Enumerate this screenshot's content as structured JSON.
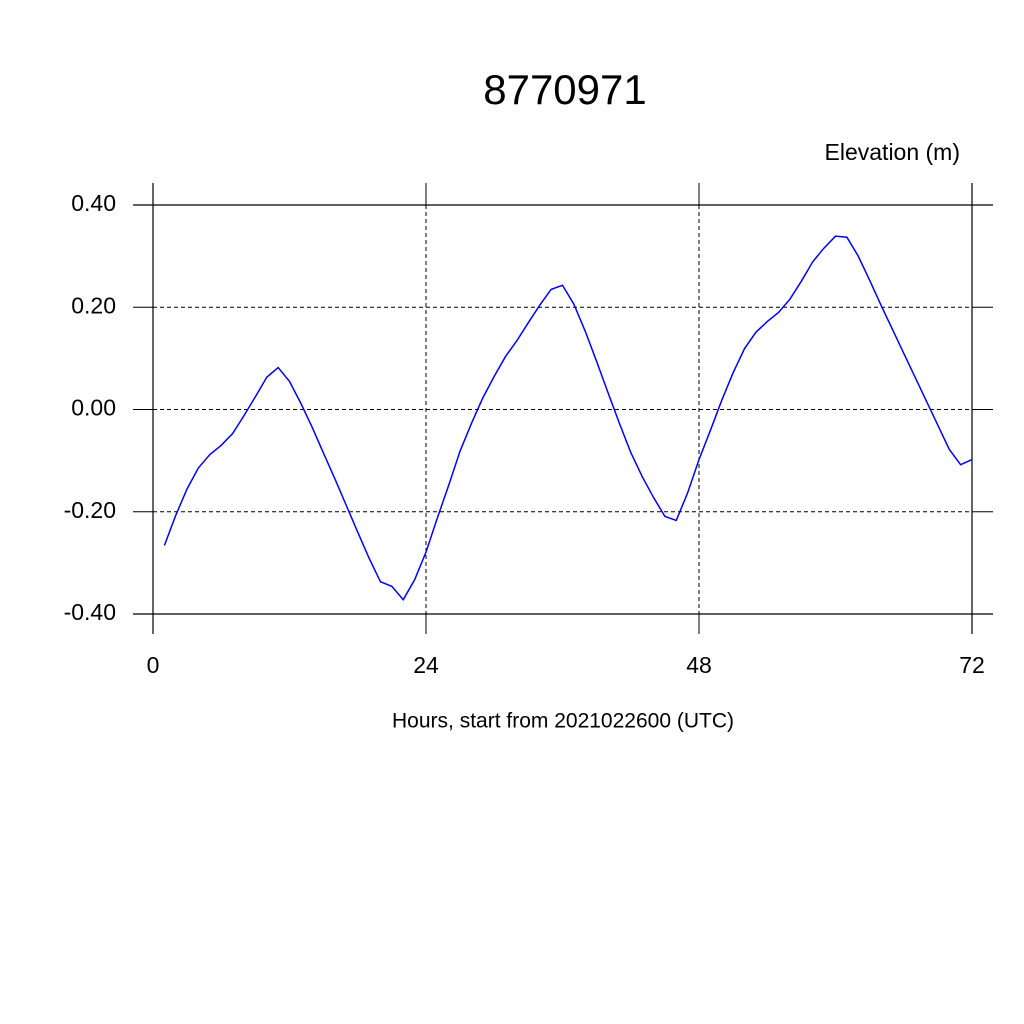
{
  "chart_data": {
    "type": "line",
    "title": "8770971",
    "ylabel": "Elevation (m)",
    "xlabel": "Hours, start from 2021022600 (UTC)",
    "x": [
      1,
      2,
      3,
      4,
      5,
      6,
      7,
      8,
      9,
      10,
      11,
      12,
      13,
      14,
      15,
      16,
      17,
      18,
      19,
      20,
      21,
      22,
      23,
      24,
      25,
      26,
      27,
      28,
      29,
      30,
      31,
      32,
      33,
      34,
      35,
      36,
      37,
      38,
      39,
      40,
      41,
      42,
      43,
      44,
      45,
      46,
      47,
      48,
      49,
      50,
      51,
      52,
      53,
      54,
      55,
      56,
      57,
      58,
      59,
      60,
      61,
      62,
      63,
      64,
      65,
      66,
      67,
      68,
      69,
      70,
      71,
      72
    ],
    "series": [
      {
        "color": "#0000ff",
        "values": [
          -0.266,
          -0.207,
          -0.155,
          -0.114,
          -0.088,
          -0.07,
          -0.047,
          -0.012,
          0.025,
          0.063,
          0.082,
          0.055,
          0.012,
          -0.035,
          -0.086,
          -0.136,
          -0.188,
          -0.24,
          -0.291,
          -0.337,
          -0.346,
          -0.372,
          -0.333,
          -0.279,
          -0.212,
          -0.148,
          -0.081,
          -0.027,
          0.023,
          0.065,
          0.104,
          0.135,
          0.17,
          0.204,
          0.235,
          0.243,
          0.206,
          0.153,
          0.094,
          0.033,
          -0.027,
          -0.084,
          -0.131,
          -0.172,
          -0.209,
          -0.217,
          -0.163,
          -0.098,
          -0.041,
          0.018,
          0.072,
          0.119,
          0.151,
          0.172,
          0.19,
          0.216,
          0.251,
          0.289,
          0.316,
          0.339,
          0.337,
          0.3,
          0.253,
          0.204,
          0.157,
          0.11,
          0.063,
          0.016,
          -0.031,
          -0.078,
          -0.108,
          -0.098
        ]
      }
    ],
    "xlim": [
      0,
      72
    ],
    "xticks": [
      0,
      24,
      48,
      72
    ],
    "ylim": [
      -0.4,
      0.4
    ],
    "yticks": [
      {
        "value": -0.4,
        "label": "-0.40"
      },
      {
        "value": -0.2,
        "label": "-0.20"
      },
      {
        "value": 0,
        "label": "0.00"
      },
      {
        "value": 0.2,
        "label": "0.20"
      },
      {
        "value": 0.4,
        "label": "0.40"
      }
    ],
    "grid": true
  }
}
